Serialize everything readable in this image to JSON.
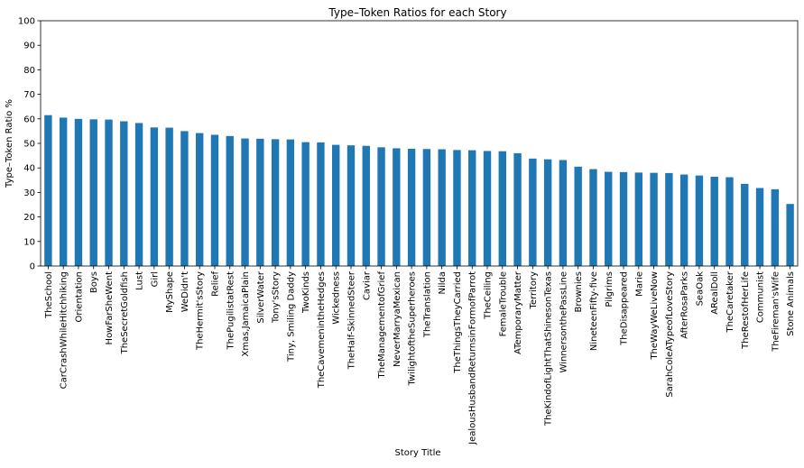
{
  "chart_data": {
    "type": "bar",
    "title": "Type–Token Ratios for each Story",
    "xlabel": "Story Title",
    "ylabel": "Type–Token Ratio %",
    "ylim": [
      0,
      100
    ],
    "yticks": [
      0,
      10,
      20,
      30,
      40,
      50,
      60,
      70,
      80,
      90,
      100
    ],
    "grid": false,
    "legend": "none",
    "bar_color": "#1f77b4",
    "categories": [
      "TheSchool",
      "CarCrashWhileHitchhiking",
      "Orientation",
      "Boys",
      "HowFarSheWent",
      "TheSecretGoldfish",
      "Lust",
      "Girl",
      "MyShape",
      "WeDidn't",
      "TheHermit'sStory",
      "Relief",
      "ThePugilistatRest",
      "Xmas,JamaicaPlain",
      "SilverWater",
      "Tony'sStory",
      "Tiny, Smiling Daddy",
      "TwoKinds",
      "TheCavemenintheHedges",
      "Wickedness",
      "TheHalf-SkinnedSteer",
      "Caviar",
      "TheManagementofGrief",
      "NeverMarryaMexican",
      "TwilightoftheSuperheroes",
      "TheTranslation",
      "Nilda",
      "TheThingsTheyCarried",
      "JealousHusbandReturnsinFormofParrot",
      "TheCeiling",
      "FemaleTrouble",
      "ATemporaryMatter",
      "Territory",
      "TheKindofLightThatShinesonTexas",
      "WinnersonthePassLine",
      "Brownies",
      "NineteenFifty-five",
      "Pilgrims",
      "TheDisappeared",
      "Marie",
      "TheWayWeLiveNow",
      "SarahColeATypeofLoveStory",
      "AfterRosaParks",
      "SeaOak",
      "ARealDoll",
      "TheCaretaker",
      "TheRestofHerLife",
      "Communist",
      "TheFireman'sWife",
      "Stone Animals"
    ],
    "values": [
      61.5,
      60.5,
      60.0,
      59.8,
      59.7,
      59.0,
      58.3,
      56.5,
      56.4,
      55.0,
      54.2,
      53.5,
      53.0,
      52.0,
      51.9,
      51.7,
      51.6,
      50.5,
      50.4,
      49.4,
      49.2,
      49.0,
      48.4,
      48.0,
      47.8,
      47.7,
      47.6,
      47.3,
      47.2,
      46.9,
      46.8,
      46.0,
      43.8,
      43.5,
      43.2,
      40.5,
      39.5,
      38.4,
      38.3,
      38.1,
      38.0,
      37.9,
      37.3,
      36.9,
      36.4,
      36.2,
      33.5,
      31.8,
      31.3,
      25.3
    ]
  }
}
